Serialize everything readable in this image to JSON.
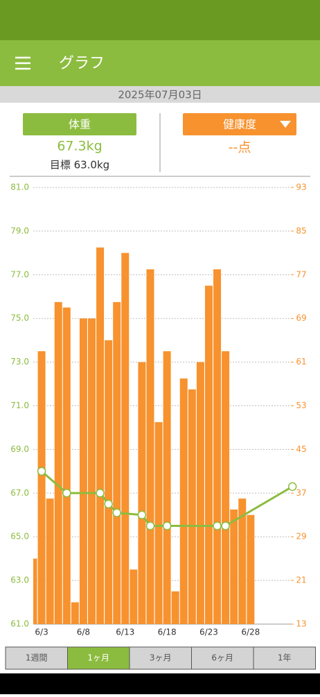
{
  "header": {
    "title": "グラフ"
  },
  "date": "2025年07月03日",
  "summary": {
    "weight_value": "67.3kg",
    "goal": "目標 63.0kg",
    "score_value": "--点"
  },
  "tabs": [
    "1週間",
    "1ヶ月",
    "3ヶ月",
    "6ヶ月",
    "1年"
  ],
  "chart_data": {
    "type": "bar-line",
    "categories": [
      null,
      "6/3",
      null,
      null,
      null,
      null,
      "6/8",
      null,
      null,
      null,
      null,
      "6/13",
      null,
      null,
      null,
      null,
      "6/18",
      null,
      null,
      null,
      null,
      "6/23",
      null,
      null,
      null,
      null,
      "6/28",
      null,
      null,
      null,
      null,
      null
    ],
    "series": [
      {
        "name": "体重",
        "color": "#8cbc3f",
        "type": "line",
        "values": [
          null,
          68.0,
          null,
          null,
          67.0,
          null,
          null,
          null,
          67.0,
          66.5,
          66.1,
          null,
          null,
          66.0,
          65.5,
          null,
          65.5,
          null,
          null,
          null,
          null,
          null,
          65.5,
          65.5,
          null,
          null,
          null,
          null,
          null,
          null,
          null,
          67.3
        ]
      },
      {
        "name": "健康度",
        "color": "#f7922f",
        "type": "bar",
        "axis": "y2",
        "values": [
          25,
          63,
          36,
          72,
          71,
          17,
          69,
          69,
          82,
          65,
          72,
          81,
          23,
          61,
          78,
          50,
          63,
          19,
          58,
          56,
          61,
          75,
          78,
          63,
          34,
          36,
          33,
          null,
          null,
          null,
          null,
          null
        ]
      }
    ],
    "ylim": [
      61,
      81
    ],
    "yticks": [
      {
        "value": 61,
        "label": "61.0"
      },
      {
        "value": 63,
        "label": "63.0"
      },
      {
        "value": 65,
        "label": "65.0"
      },
      {
        "value": 67,
        "label": "67.0"
      },
      {
        "value": 69,
        "label": "69.0"
      },
      {
        "value": 71,
        "label": "71.0"
      },
      {
        "value": 73,
        "label": "73.0"
      },
      {
        "value": 75,
        "label": "75.0"
      },
      {
        "value": 77,
        "label": "77.0"
      },
      {
        "value": 79,
        "label": "79.0"
      },
      {
        "value": 81,
        "label": "81.0"
      }
    ],
    "y2lim": [
      13,
      93
    ],
    "y2ticks": [
      13,
      21,
      29,
      37,
      45,
      53,
      61,
      69,
      77,
      85,
      93
    ],
    "grid": true
  }
}
